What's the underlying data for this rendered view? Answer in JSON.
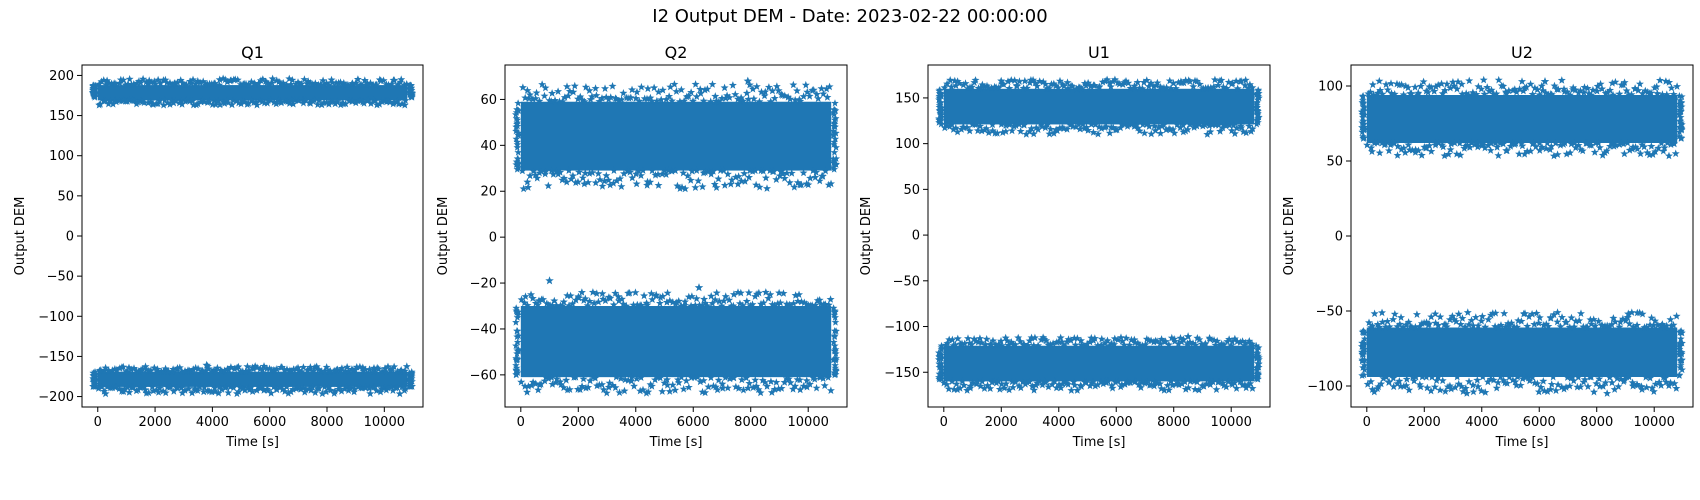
{
  "suptitle": "I2 Output DEM - Date: 2023-02-22 00:00:00",
  "colors": {
    "series": "#1f77b4"
  },
  "marker": "star",
  "chart_data": [
    {
      "type": "scatter",
      "title": "Q1",
      "xlabel": "Time [s]",
      "ylabel": "Output DEM",
      "xlim": [
        -550,
        11350
      ],
      "ylim": [
        -213,
        213
      ],
      "xticks": [
        0,
        2000,
        4000,
        6000,
        8000,
        10000
      ],
      "yticks": [
        -200,
        -150,
        -100,
        -50,
        0,
        50,
        100,
        150,
        200
      ],
      "x_range": [
        0,
        10800
      ],
      "bands": [
        {
          "center": 178,
          "core": [
            169,
            188
          ],
          "spread": [
            163,
            196
          ]
        },
        {
          "center": -178,
          "core": [
            -188,
            -169
          ],
          "spread": [
            -197,
            -162
          ]
        }
      ],
      "outliers": [
        [
          3800,
          -161
        ]
      ]
    },
    {
      "type": "scatter",
      "title": "Q2",
      "xlabel": "Time [s]",
      "ylabel": "Output DEM",
      "xlim": [
        -550,
        11350
      ],
      "ylim": [
        -74,
        75
      ],
      "xticks": [
        0,
        2000,
        4000,
        6000,
        8000,
        10000
      ],
      "yticks": [
        -60,
        -40,
        -20,
        0,
        20,
        40,
        60
      ],
      "x_range": [
        0,
        10800
      ],
      "bands": [
        {
          "center": 43,
          "core": [
            29,
            59
          ],
          "spread": [
            21,
            67
          ]
        },
        {
          "center": -46,
          "core": [
            -61,
            -30
          ],
          "spread": [
            -68,
            -24
          ]
        }
      ],
      "outliers": [
        [
          1000,
          -19
        ],
        [
          7900,
          68
        ],
        [
          6200,
          -22
        ]
      ]
    },
    {
      "type": "scatter",
      "title": "U1",
      "xlabel": "Time [s]",
      "ylabel": "Output DEM",
      "xlim": [
        -550,
        11350
      ],
      "ylim": [
        -188,
        186
      ],
      "xticks": [
        0,
        2000,
        4000,
        6000,
        8000,
        10000
      ],
      "yticks": [
        -150,
        -100,
        -50,
        0,
        50,
        100,
        150
      ],
      "x_range": [
        0,
        10800
      ],
      "bands": [
        {
          "center": 140,
          "core": [
            121,
            160
          ],
          "spread": [
            110,
            170
          ]
        },
        {
          "center": -140,
          "core": [
            -160,
            -121
          ],
          "spread": [
            -170,
            -112
          ]
        }
      ],
      "outliers": [
        [
          8500,
          -111
        ]
      ]
    },
    {
      "type": "scatter",
      "title": "U2",
      "xlabel": "Time [s]",
      "ylabel": "Output DEM",
      "xlim": [
        -550,
        11350
      ],
      "ylim": [
        -114,
        114
      ],
      "xticks": [
        0,
        2000,
        4000,
        6000,
        8000,
        10000
      ],
      "yticks": [
        -100,
        -50,
        0,
        50,
        100
      ],
      "x_range": [
        0,
        10800
      ],
      "bands": [
        {
          "center": 78,
          "core": [
            62,
            94
          ],
          "spread": [
            53,
            104
          ]
        },
        {
          "center": -77,
          "core": [
            -94,
            -61
          ],
          "spread": [
            -105,
            -51
          ]
        }
      ],
      "outliers": [
        [
          9100,
          -52
        ],
        [
          6200,
          103
        ]
      ]
    }
  ]
}
